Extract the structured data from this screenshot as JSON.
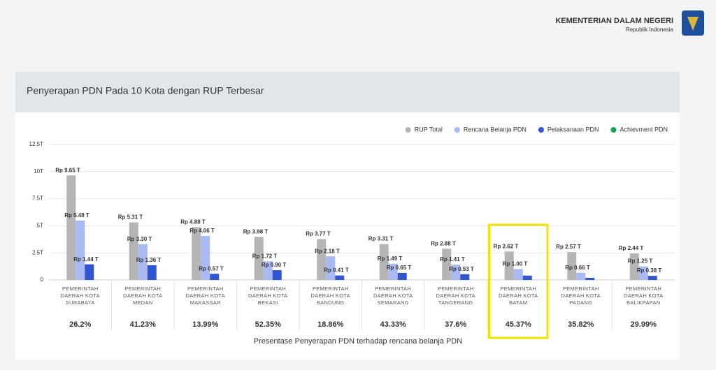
{
  "header": {
    "title": "KEMENTERIAN DALAM NEGERI",
    "subtitle": "Republik Indonesia"
  },
  "chart_data": {
    "type": "bar",
    "title": "Penyerapan PDN Pada 10 Kota dengan RUP Terbesar",
    "x_label": "Presentase Penyerapan PDN terhadap rencana belanja PDN",
    "categories": [
      "PEMERINTAH DAERAH KOTA SURABAYA",
      "PEMERINTAH DAERAH KOTA MEDAN",
      "PEMERINTAH DAERAH KOTA MAKASSAR",
      "PEMERINTAH DAERAH KOTA BEKASI",
      "PEMERINTAH DAERAH KOTA BANDUNG",
      "PEMERINTAH DAERAH KOTA SEMARANG",
      "PEMERINTAH DAERAH KOTA TANGERANG",
      "PEMERINTAH DAERAH KOTA BATAM",
      "PEMERINTAH DAERAH KOTA PADANG",
      "PEMERINTAH DAERAH KOTA BALIKPAPAN"
    ],
    "series": [
      {
        "name": "RUP Total",
        "color": "#b5b5b5",
        "values": [
          9.65,
          5.31,
          4.88,
          3.98,
          3.77,
          3.31,
          2.88,
          2.62,
          2.57,
          2.44
        ],
        "value_labels": [
          "Rp 9.65 T",
          "Rp 5.31 T",
          "Rp 4.88 T",
          "Rp 3.98 T",
          "Rp 3.77 T",
          "Rp 3.31 T",
          "Rp 2.88 T",
          "Rp 2.62 T",
          "Rp 2.57 T",
          "Rp 2.44 T"
        ]
      },
      {
        "name": "Rencana Belanja PDN",
        "color": "#a9b9f2",
        "values": [
          5.48,
          3.3,
          4.06,
          1.72,
          2.18,
          1.49,
          1.41,
          1.0,
          0.66,
          1.25
        ],
        "value_labels": [
          "Rp 5.48 T",
          "Rp 3.30 T",
          "Rp 4.06 T",
          "Rp 1.72 T",
          "Rp 2.18 T",
          "Rp 1.49 T",
          "Rp 1.41 T",
          "Rp 1.00 T",
          "Rp 0.66 T",
          "Rp 1.25 T"
        ]
      },
      {
        "name": "Pelaksanaan PDN",
        "color": "#2f55d4",
        "values": [
          1.44,
          1.36,
          0.57,
          0.9,
          0.41,
          0.65,
          0.53,
          0.4,
          0.2,
          0.38
        ],
        "value_labels": [
          "Rp 1.44 T",
          "Rp 1.36 T",
          "Rp 0.57 T",
          "Rp 0.90 T",
          "Rp 0.41 T",
          "Rp 0.65 T",
          "Rp 0.53 T",
          null,
          null,
          "Rp 0.38 T"
        ]
      },
      {
        "name": "Achievment PDN",
        "color": "#1f9d55",
        "values": [
          26.2,
          41.23,
          13.99,
          52.35,
          18.86,
          43.33,
          37.6,
          45.37,
          35.82,
          29.99
        ],
        "value_labels": [
          "26.2%",
          "41.23%",
          "13.99%",
          "52.35%",
          "18.86%",
          "43.33%",
          "37.6%",
          "45.37%",
          "35.82%",
          "29.99%"
        ]
      }
    ],
    "ylim": [
      0,
      12.5
    ],
    "yticks": [
      0,
      {
        "value": 2.5,
        "label": "2.5T"
      },
      {
        "value": 5,
        "label": "5T"
      },
      {
        "value": 7.5,
        "label": "7.5T"
      },
      {
        "value": 10,
        "label": "10T"
      },
      {
        "value": 12.5,
        "label": "12.5T"
      }
    ],
    "grid": true,
    "legend": "top-right",
    "highlight_index": 7
  }
}
